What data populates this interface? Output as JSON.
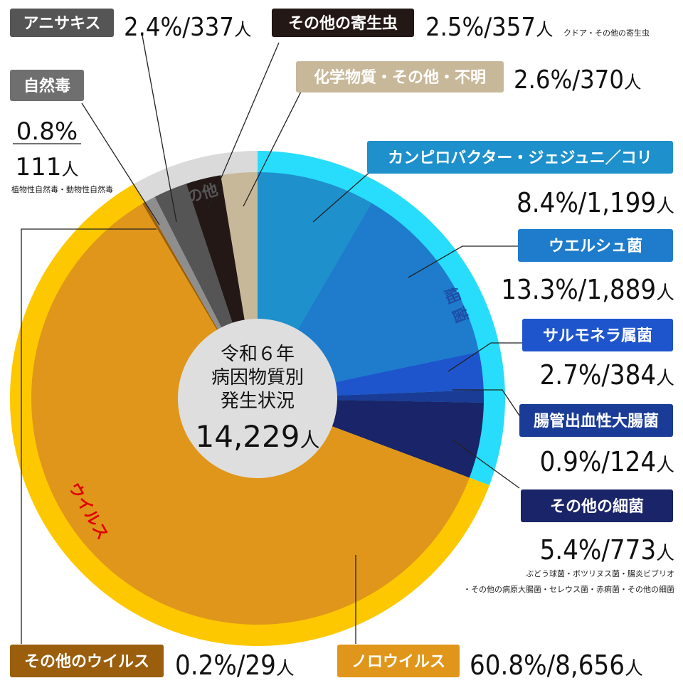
{
  "chart_data": {
    "type": "pie",
    "center": {
      "line1": "令和６年",
      "line2": "病因物質別",
      "line3": "発生状況",
      "total": "14,229",
      "unit": "人"
    },
    "groups": [
      {
        "name": "細 菌",
        "color": "#27DDFB",
        "text_color": "#1D4FA8"
      },
      {
        "name": "ウイルス",
        "color": "#FDC800",
        "text_color": "#E00000"
      },
      {
        "name": "その他",
        "color": "#DADADA",
        "text_color": "#555555"
      }
    ],
    "slices": [
      {
        "key": "campylobacter",
        "label": "カンピロバクター・ジェジュニ／コリ",
        "percent": 8.4,
        "count": "1,199",
        "color": "#1E90CC",
        "tag_color": "#1E90CC"
      },
      {
        "key": "welchii",
        "label": "ウエルシュ菌",
        "percent": 13.3,
        "count": "1,889",
        "color": "#1F7CCC",
        "tag_color": "#1F7CCC"
      },
      {
        "key": "salmonella",
        "label": "サルモネラ属菌",
        "percent": 2.7,
        "count": "384",
        "color": "#1F55CC",
        "tag_color": "#1F55CC"
      },
      {
        "key": "ehec",
        "label": "腸管出血性大腸菌",
        "percent": 0.9,
        "count": "124",
        "color": "#1A3B96",
        "tag_color": "#1A3B96"
      },
      {
        "key": "other_bacteria",
        "label": "その他の細菌",
        "percent": 5.4,
        "count": "773",
        "color": "#1A2468",
        "tag_color": "#1A2468",
        "note_line1": "ぶどう球菌・ボツリヌス菌・腸炎ビブリオ",
        "note_line2": "・その他の病原大腸菌・セレウス菌・赤痢菌・その他の細菌"
      },
      {
        "key": "norovirus",
        "label": "ノロウイルス",
        "percent": 60.8,
        "count": "8,656",
        "color": "#E0961A",
        "tag_color": "#E0961A"
      },
      {
        "key": "other_virus",
        "label": "その他のウイルス",
        "percent": 0.2,
        "count": "29",
        "color": "#9A5E0C",
        "tag_color": "#9A5E0C"
      },
      {
        "key": "natural_toxin",
        "label": "自然毒",
        "percent": 0.8,
        "count": "111",
        "color": "#8E8E8E",
        "tag_color": "#6F6F6F",
        "note_line1": "植物性自然毒・動物性自然毒"
      },
      {
        "key": "anisakis",
        "label": "アニサキス",
        "percent": 2.4,
        "count": "337",
        "color": "#555555",
        "tag_color": "#555555"
      },
      {
        "key": "other_parasites",
        "label": "その他の寄生虫",
        "percent": 2.5,
        "count": "357",
        "color": "#231816",
        "tag_color": "#231816",
        "note_line1": "クドア・その他の寄生虫"
      },
      {
        "key": "chemical",
        "label": "化学物質・その他・不明",
        "percent": 2.6,
        "count": "370",
        "color": "#C8B89A",
        "tag_color": "#C8B89A"
      }
    ],
    "unit": "人"
  }
}
